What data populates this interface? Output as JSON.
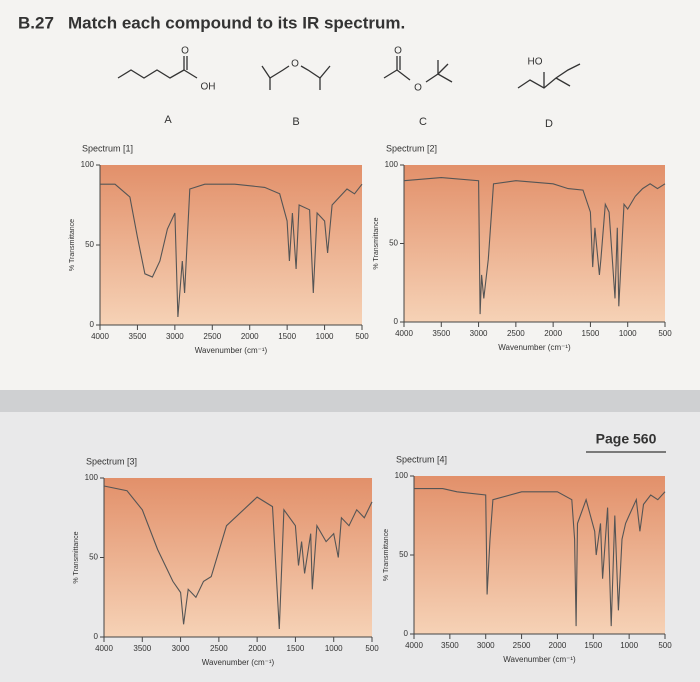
{
  "problem": {
    "number": "B.27",
    "text": "Match each compound to its IR spectrum."
  },
  "compounds": [
    {
      "label": "A",
      "atoms": [
        "O",
        "OH"
      ]
    },
    {
      "label": "B",
      "atoms": [
        "O"
      ]
    },
    {
      "label": "C",
      "atoms": [
        "O",
        "O"
      ]
    },
    {
      "label": "D",
      "atoms": [
        "HO"
      ]
    }
  ],
  "page": "Page 560",
  "chart_data": [
    {
      "type": "line",
      "title": "Spectrum [1]",
      "x_label": "Wavenumber (cm⁻¹)",
      "y_label": "% Transmittance",
      "color": "#555555",
      "x": [
        4000,
        3800,
        3600,
        3500,
        3400,
        3300,
        3200,
        3100,
        3000,
        2960,
        2900,
        2870,
        2800,
        2600,
        2200,
        1800,
        1600,
        1500,
        1470,
        1430,
        1380,
        1340,
        1200,
        1150,
        1100,
        1000,
        960,
        900,
        800,
        700,
        600,
        500
      ],
      "values": [
        88,
        88,
        80,
        55,
        32,
        30,
        40,
        60,
        70,
        5,
        40,
        20,
        85,
        88,
        88,
        86,
        82,
        65,
        40,
        70,
        35,
        75,
        72,
        20,
        70,
        65,
        45,
        75,
        80,
        85,
        82,
        88
      ],
      "xlim": [
        4000,
        500
      ],
      "ylim": [
        0,
        100
      ],
      "xticks": [
        4000,
        3500,
        3000,
        2500,
        2000,
        1500,
        1000,
        500
      ],
      "yticks": [
        0,
        50,
        100
      ]
    },
    {
      "type": "line",
      "title": "Spectrum [2]",
      "x_label": "Wavenumber (cm⁻¹)",
      "y_label": "% Transmittance",
      "color": "#555555",
      "x": [
        4000,
        3500,
        3000,
        2980,
        2960,
        2930,
        2870,
        2800,
        2500,
        2000,
        1800,
        1600,
        1500,
        1470,
        1440,
        1380,
        1360,
        1300,
        1250,
        1170,
        1140,
        1120,
        1050,
        1000,
        900,
        800,
        700,
        600,
        500
      ],
      "values": [
        90,
        92,
        90,
        5,
        30,
        15,
        40,
        88,
        90,
        88,
        85,
        84,
        70,
        35,
        60,
        30,
        40,
        75,
        70,
        15,
        60,
        10,
        75,
        72,
        80,
        85,
        88,
        85,
        88
      ],
      "xlim": [
        4000,
        500
      ],
      "ylim": [
        0,
        100
      ],
      "xticks": [
        4000,
        3500,
        3000,
        2500,
        2000,
        1500,
        1000,
        500
      ],
      "yticks": [
        0,
        50,
        100
      ]
    },
    {
      "type": "line",
      "title": "Spectrum [3]",
      "x_label": "Wavenumber (cm⁻¹)",
      "y_label": "% Transmittance",
      "color": "#555555",
      "x": [
        4000,
        3700,
        3500,
        3300,
        3100,
        3000,
        2960,
        2900,
        2800,
        2700,
        2600,
        2400,
        2000,
        1800,
        1710,
        1650,
        1500,
        1460,
        1420,
        1380,
        1300,
        1280,
        1220,
        1100,
        1000,
        940,
        900,
        800,
        700,
        600,
        500
      ],
      "values": [
        95,
        92,
        80,
        55,
        35,
        28,
        8,
        30,
        25,
        35,
        38,
        70,
        88,
        82,
        5,
        80,
        70,
        45,
        60,
        40,
        65,
        30,
        70,
        60,
        65,
        50,
        75,
        70,
        80,
        75,
        85
      ],
      "xlim": [
        4000,
        500
      ],
      "ylim": [
        0,
        100
      ],
      "xticks": [
        4000,
        3500,
        3000,
        2500,
        2000,
        1500,
        1000,
        500
      ],
      "yticks": [
        0,
        50,
        100
      ]
    },
    {
      "type": "line",
      "title": "Spectrum [4]",
      "x_label": "Wavenumber (cm⁻¹)",
      "y_label": "% Transmittance",
      "color": "#555555",
      "x": [
        4000,
        3600,
        3400,
        3000,
        2980,
        2940,
        2900,
        2500,
        2000,
        1800,
        1760,
        1740,
        1720,
        1600,
        1480,
        1460,
        1400,
        1370,
        1300,
        1250,
        1200,
        1150,
        1100,
        1050,
        1000,
        900,
        850,
        800,
        700,
        600,
        500
      ],
      "values": [
        92,
        92,
        90,
        88,
        25,
        60,
        85,
        90,
        90,
        85,
        60,
        5,
        70,
        85,
        65,
        50,
        70,
        35,
        80,
        5,
        75,
        15,
        60,
        70,
        75,
        85,
        65,
        82,
        88,
        85,
        90
      ],
      "xlim": [
        4000,
        500
      ],
      "ylim": [
        0,
        100
      ],
      "xticks": [
        4000,
        3500,
        3000,
        2500,
        2000,
        1500,
        1000,
        500
      ],
      "yticks": [
        0,
        50,
        100
      ]
    }
  ]
}
